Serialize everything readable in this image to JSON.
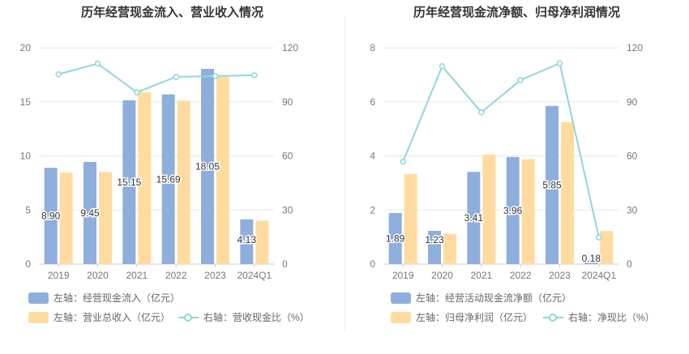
{
  "chart_data": [
    {
      "type": "bar",
      "title": "历年经营现金流入、营业收入情况",
      "categories": [
        "2019",
        "2020",
        "2021",
        "2022",
        "2023",
        "2024Q1"
      ],
      "left_axis": {
        "ylim": [
          0,
          20
        ],
        "ticks": [
          "0",
          "5",
          "10",
          "15",
          "20"
        ],
        "tick_values": [
          0,
          5,
          10,
          15,
          20
        ]
      },
      "right_axis": {
        "ylim": [
          0,
          120
        ],
        "ticks": [
          "0",
          "30",
          "60",
          "90",
          "120"
        ],
        "tick_values": [
          0,
          30,
          60,
          90,
          120
        ]
      },
      "series": [
        {
          "name": "左轴：经营现金流入（亿元）",
          "kind": "bar",
          "axis": "left",
          "color": "#8eaedc",
          "values": [
            8.9,
            9.45,
            15.15,
            15.69,
            18.05,
            4.13
          ],
          "labels": [
            "8.90",
            "9.45",
            "15.15",
            "15.69",
            "18.05",
            "4.13"
          ]
        },
        {
          "name": "左轴：营业总收入（亿元）",
          "kind": "bar",
          "axis": "left",
          "color": "#ffdb9f",
          "values": [
            8.45,
            8.5,
            15.9,
            15.1,
            17.3,
            4.0
          ]
        },
        {
          "name": "右轴：营收现金比（%）",
          "kind": "line",
          "axis": "right",
          "color": "#8ed7dc",
          "values": [
            105.3,
            111.2,
            95.3,
            103.9,
            104.3,
            104.8
          ]
        }
      ],
      "legend": {
        "position": "bottom"
      }
    },
    {
      "type": "bar",
      "title": "历年经营现金流净额、归母净利润情况",
      "categories": [
        "2019",
        "2020",
        "2021",
        "2022",
        "2023",
        "2024Q1"
      ],
      "left_axis": {
        "ylim": [
          0,
          8
        ],
        "ticks": [
          "0",
          "2",
          "4",
          "6",
          "8"
        ],
        "tick_values": [
          0,
          2,
          4,
          6,
          8
        ]
      },
      "right_axis": {
        "ylim": [
          0,
          120
        ],
        "ticks": [
          "0",
          "30",
          "60",
          "90",
          "120"
        ],
        "tick_values": [
          0,
          30,
          60,
          90,
          120
        ]
      },
      "series": [
        {
          "name": "左轴：经营活动现金流净额（亿元）",
          "kind": "bar",
          "axis": "left",
          "color": "#8eaedc",
          "values": [
            1.89,
            1.23,
            3.41,
            3.96,
            5.85,
            0.18
          ],
          "labels": [
            "1.89",
            "1.23",
            "3.41",
            "3.96",
            "5.85",
            "0.18"
          ]
        },
        {
          "name": "左轴：归母净利润（亿元）",
          "kind": "bar",
          "axis": "left",
          "color": "#ffdb9f",
          "values": [
            3.33,
            1.12,
            4.05,
            3.88,
            5.25,
            1.22
          ]
        },
        {
          "name": "右轴：净现比（%）",
          "kind": "line",
          "axis": "right",
          "color": "#8ed7dc",
          "values": [
            56.8,
            109.8,
            84.2,
            102.1,
            111.4,
            14.8
          ]
        }
      ],
      "legend": {
        "position": "bottom"
      }
    }
  ]
}
